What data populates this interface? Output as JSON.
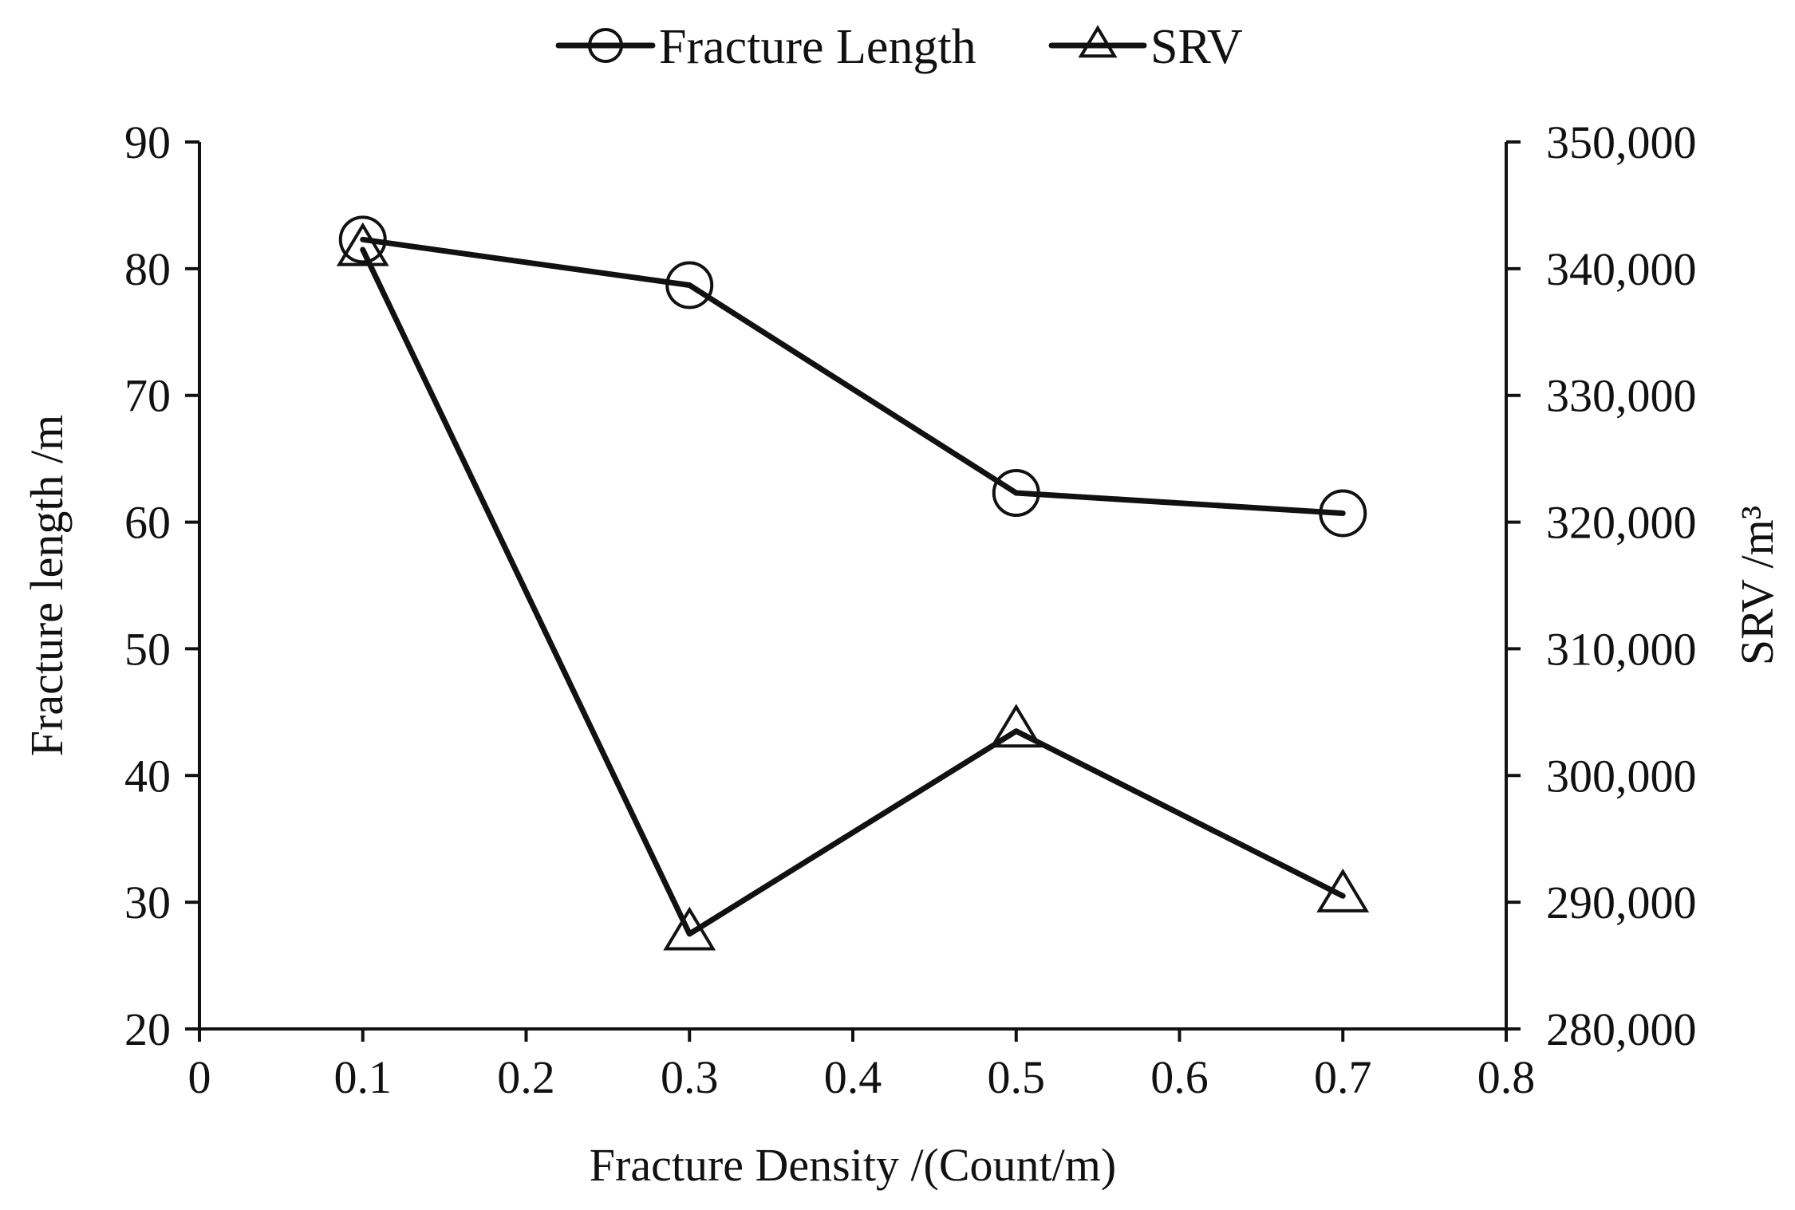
{
  "chart_data": {
    "type": "line",
    "xlabel": "Fracture Density /(Count/m)",
    "ylabel_left": "Fracture length /m",
    "ylabel_right": "SRV /m³",
    "xlim": [
      0,
      0.8
    ],
    "xticks": [
      0,
      0.1,
      0.2,
      0.3,
      0.4,
      0.5,
      0.6,
      0.7,
      0.8
    ],
    "xtick_labels": [
      "0",
      "0.1",
      "0.2",
      "0.3",
      "0.4",
      "0.5",
      "0.6",
      "0.7",
      "0.8"
    ],
    "ylim_left": [
      20,
      90
    ],
    "yticks_left": [
      20,
      30,
      40,
      50,
      60,
      70,
      80,
      90
    ],
    "ytick_labels_left": [
      "20",
      "30",
      "40",
      "50",
      "60",
      "70",
      "80",
      "90"
    ],
    "ylim_right": [
      280000,
      350000
    ],
    "yticks_right": [
      280000,
      290000,
      300000,
      310000,
      320000,
      330000,
      340000,
      350000
    ],
    "ytick_labels_right": [
      "280,000",
      "290,000",
      "300,000",
      "310,000",
      "320,000",
      "330,000",
      "340,000",
      "350,000"
    ],
    "grid": false,
    "legend_position": "top-center",
    "x": [
      0.1,
      0.3,
      0.5,
      0.7
    ],
    "series": [
      {
        "name": "Fracture Length",
        "axis": "left",
        "marker": "circle",
        "color": "#111111",
        "values": [
          82.3,
          78.7,
          62.3,
          60.7
        ]
      },
      {
        "name": "SRV",
        "axis": "right",
        "marker": "triangle",
        "color": "#111111",
        "values": [
          341500,
          287500,
          303500,
          290500
        ]
      }
    ]
  }
}
